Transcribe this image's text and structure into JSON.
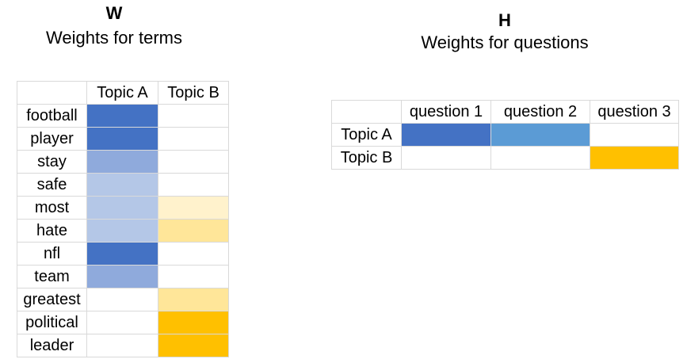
{
  "w_panel": {
    "letter": "W",
    "subtitle": "Weights for terms",
    "columns": [
      "Topic A",
      "Topic B"
    ],
    "rows": [
      {
        "term": "football",
        "topic_a_color": "#4472c4",
        "topic_b_color": "#ffffff"
      },
      {
        "term": "player",
        "topic_a_color": "#4472c4",
        "topic_b_color": "#ffffff"
      },
      {
        "term": "stay",
        "topic_a_color": "#8faadc",
        "topic_b_color": "#ffffff"
      },
      {
        "term": "safe",
        "topic_a_color": "#b4c7e7",
        "topic_b_color": "#ffffff"
      },
      {
        "term": "most",
        "topic_a_color": "#b4c7e7",
        "topic_b_color": "#fff2cc"
      },
      {
        "term": "hate",
        "topic_a_color": "#b4c7e7",
        "topic_b_color": "#ffe699"
      },
      {
        "term": "nfl",
        "topic_a_color": "#4472c4",
        "topic_b_color": "#ffffff"
      },
      {
        "term": "team",
        "topic_a_color": "#8faadc",
        "topic_b_color": "#ffffff"
      },
      {
        "term": "greatest",
        "topic_a_color": "#ffffff",
        "topic_b_color": "#ffe699"
      },
      {
        "term": "political",
        "topic_a_color": "#ffffff",
        "topic_b_color": "#ffc000"
      },
      {
        "term": "leader",
        "topic_a_color": "#ffffff",
        "topic_b_color": "#ffc000"
      }
    ]
  },
  "h_panel": {
    "letter": "H",
    "subtitle": "Weights for questions",
    "columns": [
      "question 1",
      "question 2",
      "question 3"
    ],
    "rows": [
      {
        "topic": "Topic A",
        "colors": [
          "#4472c4",
          "#5b9bd5",
          "#ffffff"
        ]
      },
      {
        "topic": "Topic B",
        "colors": [
          "#ffffff",
          "#ffffff",
          "#ffc000"
        ]
      }
    ]
  }
}
